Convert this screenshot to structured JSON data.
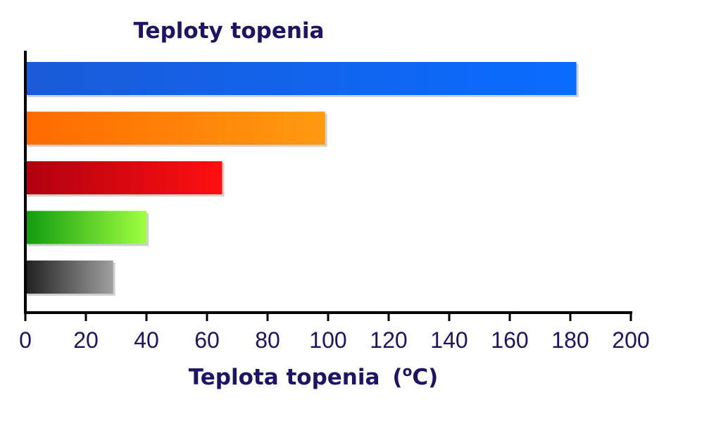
{
  "chart_data": {
    "type": "bar",
    "orientation": "horizontal",
    "title": "Teploty topenia",
    "xlabel_main": "Teplota topenia",
    "xlabel_unit_open": "(",
    "xlabel_unit_super": "o",
    "xlabel_unit_rest": "C)",
    "ylabel": "",
    "xlim": [
      0,
      200
    ],
    "x_ticks": [
      "0",
      "20",
      "40",
      "60",
      "80",
      "100",
      "120",
      "140",
      "160",
      "180",
      "200"
    ],
    "grid": false,
    "legend": "none",
    "bars": [
      {
        "value": 182,
        "color_start": "#1a5bd8",
        "color_end": "#0a6cff"
      },
      {
        "value": 99,
        "color_start": "#ff6a00",
        "color_end": "#ff9a10"
      },
      {
        "value": 65,
        "color_start": "#b00010",
        "color_end": "#ff1010"
      },
      {
        "value": 40,
        "color_start": "#109a10",
        "color_end": "#a0ff40"
      },
      {
        "value": 29,
        "color_start": "#202020",
        "color_end": "#a0a0a0"
      }
    ]
  },
  "colors": {
    "text": "#1c1464",
    "axis": "#000000",
    "shadow": "#b0b0b0"
  }
}
